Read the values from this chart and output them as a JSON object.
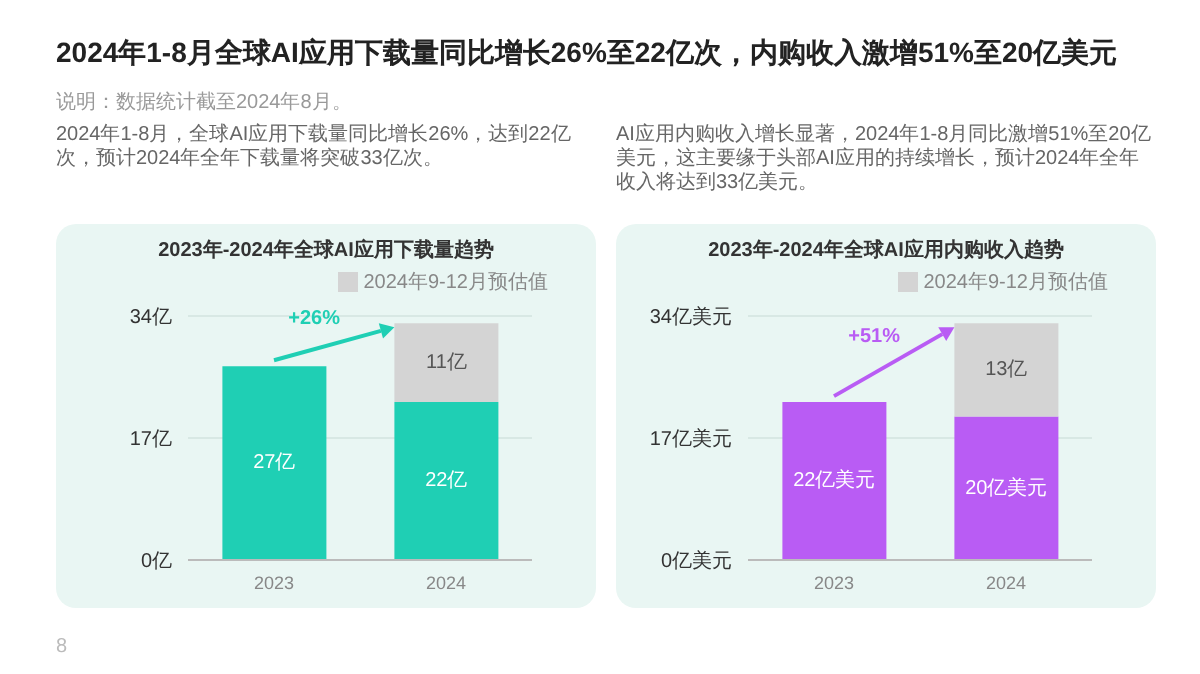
{
  "chart_data": [
    {
      "type": "other",
      "title": "2024年1-8月全球AI应用下载量同比增长26%至22亿次，内购收入激增51%至20亿美元",
      "annotations": [
        "说明：数据统计截至2024年8月。",
        "8"
      ]
    },
    {
      "type": "bar",
      "title": "2023年-2024年全球AI应用下载量趋势",
      "subtitle": "2024年1-8月，全球AI应用下载量同比增长26%，达到22亿次，预计2024年全年下载量将突破33亿次。",
      "categories": [
        "2023",
        "2024"
      ],
      "stacked": true,
      "series": [
        {
          "color": "#1fcfb4",
          "values": [
            27,
            22
          ],
          "value_labels": [
            "27亿",
            "22亿"
          ]
        },
        {
          "name": "2024年9-12月预估值",
          "color": "#d4d4d4",
          "values": [
            null,
            11
          ],
          "value_labels": [
            null,
            "11亿"
          ]
        }
      ],
      "ylim": [
        0,
        34
      ],
      "yticks": [
        {
          "value": 0,
          "label": "0亿"
        },
        {
          "value": 17,
          "label": "17亿"
        },
        {
          "value": 34,
          "label": "34亿"
        }
      ],
      "grid": "y",
      "legend": "top right",
      "annotations": [
        "+26%"
      ]
    },
    {
      "type": "bar",
      "title": "2023年-2024年全球AI应用内购收入趋势",
      "subtitle": "AI应用内购收入增长显著，2024年1-8月同比激增51%至20亿美元，这主要缘于头部AI应用的持续增长，预计2024年全年收入将达到33亿美元。",
      "categories": [
        "2023",
        "2024"
      ],
      "stacked": true,
      "series": [
        {
          "color": "#b95cf4",
          "values": [
            22,
            20
          ],
          "value_labels": [
            "22亿美元",
            "20亿美元"
          ]
        },
        {
          "name": "2024年9-12月预估值",
          "color": "#d4d4d4",
          "values": [
            null,
            13
          ],
          "value_labels": [
            null,
            "13亿"
          ]
        }
      ],
      "ylim": [
        0,
        34
      ],
      "yticks": [
        {
          "value": 0,
          "label": "0亿美元"
        },
        {
          "value": 17,
          "label": "17亿美元"
        },
        {
          "value": 34,
          "label": "34亿美元"
        }
      ],
      "grid": "y",
      "legend": "top right",
      "annotations": [
        "+51%"
      ]
    }
  ]
}
